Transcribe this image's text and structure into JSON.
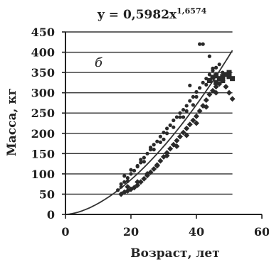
{
  "chart_data": {
    "type": "scatter",
    "title": "y = 0,5982x",
    "title_exponent": "1,6574",
    "panel_label": "б",
    "xlabel": "Возраст, лет",
    "ylabel": "Масса, кг",
    "xlim": [
      0,
      60
    ],
    "ylim": [
      0,
      450
    ],
    "x_ticks": [
      "0",
      "20",
      "40",
      "60"
    ],
    "y_ticks": [
      "0",
      "50",
      "100",
      "150",
      "200",
      "250",
      "300",
      "350",
      "400",
      "450"
    ],
    "grid": "horizontal",
    "fit": {
      "a": 0.5982,
      "b": 1.6574,
      "x_range": [
        0,
        51
      ]
    },
    "series": [
      {
        "marker": "circle",
        "points": [
          [
            16,
            60
          ],
          [
            17,
            68
          ],
          [
            18,
            80
          ],
          [
            19,
            90
          ],
          [
            20,
            100
          ],
          [
            21,
            108
          ],
          [
            22,
            118
          ],
          [
            23,
            128
          ],
          [
            24,
            140
          ],
          [
            25,
            150
          ],
          [
            26,
            160
          ],
          [
            27,
            172
          ],
          [
            28,
            180
          ],
          [
            29,
            192
          ],
          [
            30,
            202
          ],
          [
            31,
            212
          ],
          [
            32,
            220
          ],
          [
            33,
            232
          ],
          [
            34,
            240
          ],
          [
            35,
            250
          ],
          [
            36,
            258
          ],
          [
            37,
            268
          ],
          [
            38,
            280
          ],
          [
            39,
            290
          ],
          [
            40,
            302
          ],
          [
            41,
            312
          ],
          [
            42,
            325
          ],
          [
            43,
            335
          ],
          [
            44,
            345
          ],
          [
            45,
            355
          ],
          [
            46,
            362
          ],
          [
            47,
            370
          ],
          [
            17,
            75
          ],
          [
            19,
            82
          ],
          [
            22,
            120
          ],
          [
            24,
            130
          ],
          [
            27,
            160
          ],
          [
            30,
            185
          ],
          [
            33,
            215
          ],
          [
            36,
            240
          ],
          [
            39,
            270
          ],
          [
            38,
            318
          ],
          [
            41,
            420
          ],
          [
            42,
            420
          ],
          [
            44,
            390
          ],
          [
            45,
            360
          ],
          [
            18,
            95
          ],
          [
            20,
            110
          ],
          [
            23,
            135
          ],
          [
            26,
            165
          ],
          [
            29,
            178
          ],
          [
            31,
            200
          ],
          [
            35,
            240
          ],
          [
            37,
            255
          ],
          [
            40,
            290
          ],
          [
            43,
            320
          ],
          [
            46,
            345
          ],
          [
            48,
            350
          ]
        ]
      },
      {
        "marker": "diamond",
        "points": [
          [
            17,
            50
          ],
          [
            18,
            55
          ],
          [
            19,
            58
          ],
          [
            20,
            62
          ],
          [
            21,
            66
          ],
          [
            22,
            72
          ],
          [
            23,
            80
          ],
          [
            24,
            88
          ],
          [
            25,
            96
          ],
          [
            26,
            104
          ],
          [
            27,
            112
          ],
          [
            28,
            122
          ],
          [
            29,
            132
          ],
          [
            30,
            142
          ],
          [
            31,
            152
          ],
          [
            32,
            162
          ],
          [
            33,
            172
          ],
          [
            34,
            182
          ],
          [
            35,
            192
          ],
          [
            36,
            202
          ],
          [
            37,
            212
          ],
          [
            38,
            222
          ],
          [
            39,
            232
          ],
          [
            40,
            242
          ],
          [
            41,
            255
          ],
          [
            42,
            268
          ],
          [
            43,
            282
          ],
          [
            44,
            296
          ],
          [
            45,
            305
          ],
          [
            46,
            315
          ],
          [
            47,
            322
          ],
          [
            48,
            330
          ],
          [
            49,
            315
          ],
          [
            50,
            300
          ],
          [
            51,
            285
          ],
          [
            19,
            68
          ],
          [
            22,
            80
          ],
          [
            25,
            100
          ],
          [
            28,
            120
          ],
          [
            31,
            145
          ],
          [
            34,
            168
          ],
          [
            37,
            195
          ],
          [
            40,
            225
          ],
          [
            43,
            265
          ],
          [
            46,
            300
          ]
        ]
      },
      {
        "marker": "square",
        "points": [
          [
            44,
            330
          ],
          [
            45,
            338
          ],
          [
            46,
            342
          ],
          [
            47,
            335
          ],
          [
            48,
            340
          ],
          [
            49,
            345
          ],
          [
            50,
            340
          ],
          [
            51,
            335
          ],
          [
            46,
            325
          ],
          [
            48,
            330
          ],
          [
            50,
            350
          ]
        ]
      }
    ]
  }
}
